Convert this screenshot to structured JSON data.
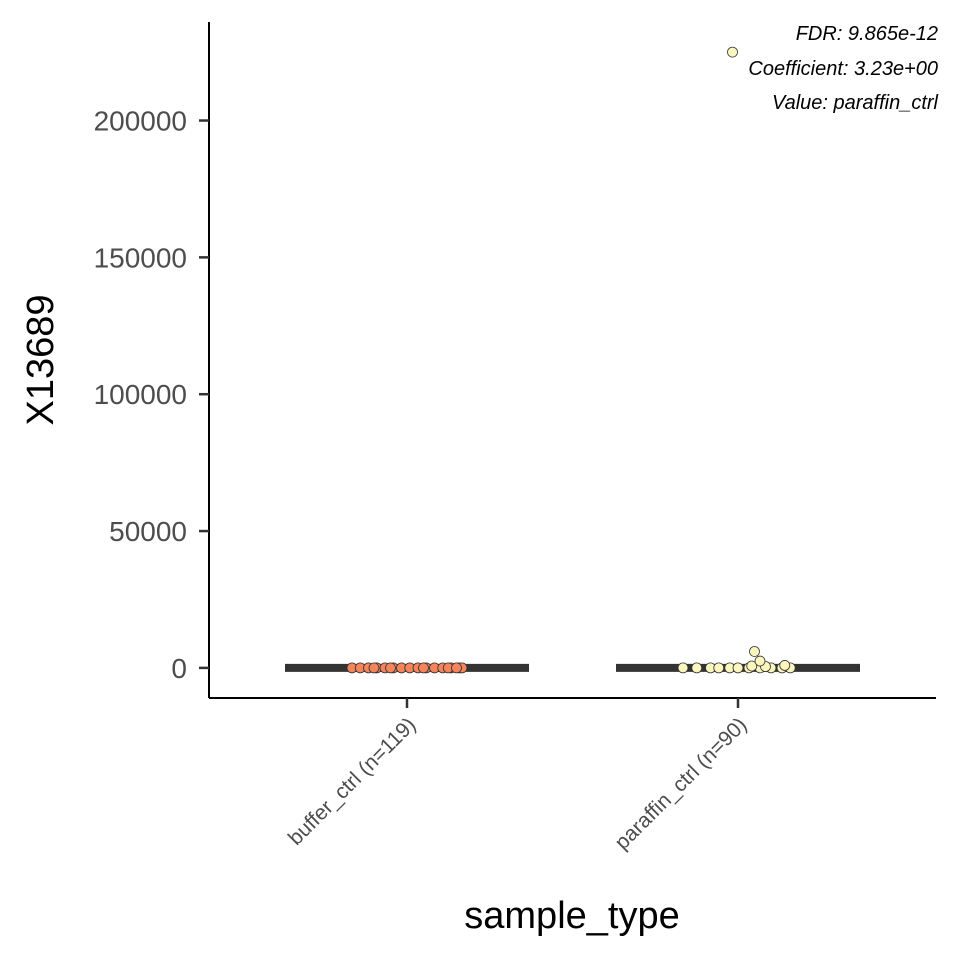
{
  "chart_data": {
    "type": "scatter",
    "subtype": "jittered dot plot with median bars",
    "xlabel": "sample_type",
    "ylabel": "X13689",
    "categories": [
      "buffer_ctrl (n=119)",
      "paraffin_ctrl (n=90)"
    ],
    "ylim": [
      -11000,
      236000
    ],
    "yticks": [
      0,
      50000,
      100000,
      150000,
      200000
    ],
    "annotations": [
      "FDR: 9.865e-12",
      "Coefficient: 3.23e+00",
      "Value: paraffin_ctrl"
    ],
    "grid": false,
    "legend": "none",
    "series": [
      {
        "category": "buffer_ctrl (n=119)",
        "color": "#f4845a",
        "median": 0,
        "points": [
          {
            "x": -0.2,
            "y": 0
          },
          {
            "x": -0.17,
            "y": 0
          },
          {
            "x": -0.14,
            "y": 0
          },
          {
            "x": -0.11,
            "y": 0
          },
          {
            "x": -0.08,
            "y": 0
          },
          {
            "x": -0.05,
            "y": 0
          },
          {
            "x": -0.02,
            "y": 0
          },
          {
            "x": 0.01,
            "y": 0
          },
          {
            "x": 0.04,
            "y": 0
          },
          {
            "x": 0.07,
            "y": 0
          },
          {
            "x": 0.1,
            "y": 0
          },
          {
            "x": 0.13,
            "y": 0
          },
          {
            "x": 0.16,
            "y": 0
          },
          {
            "x": 0.19,
            "y": 0
          },
          {
            "x": -0.12,
            "y": 0
          },
          {
            "x": 0.06,
            "y": 0
          },
          {
            "x": 0.15,
            "y": 0
          },
          {
            "x": -0.06,
            "y": 0
          },
          {
            "x": 0.2,
            "y": 0
          },
          {
            "x": 0.18,
            "y": 0
          }
        ]
      },
      {
        "category": "paraffin_ctrl (n=90)",
        "color": "#fbf6bd",
        "median": 0,
        "points": [
          {
            "x": -0.2,
            "y": 0
          },
          {
            "x": -0.15,
            "y": 0
          },
          {
            "x": -0.1,
            "y": 0
          },
          {
            "x": -0.07,
            "y": 0
          },
          {
            "x": -0.03,
            "y": 0
          },
          {
            "x": 0.0,
            "y": 0
          },
          {
            "x": 0.04,
            "y": 0
          },
          {
            "x": 0.08,
            "y": 0
          },
          {
            "x": 0.12,
            "y": 0
          },
          {
            "x": 0.16,
            "y": 0
          },
          {
            "x": 0.19,
            "y": 0
          },
          {
            "x": 0.05,
            "y": 700
          },
          {
            "x": 0.1,
            "y": 500
          },
          {
            "x": 0.17,
            "y": 900
          },
          {
            "x": 0.08,
            "y": 2500
          },
          {
            "x": 0.06,
            "y": 6000
          },
          {
            "x": -0.02,
            "y": 225000
          }
        ]
      }
    ]
  }
}
